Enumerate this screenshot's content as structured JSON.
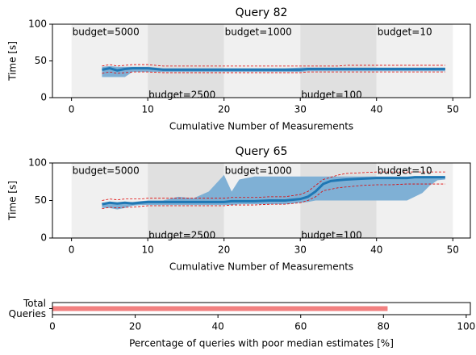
{
  "chart_data": [
    {
      "type": "line",
      "title": "Query 82",
      "xlabel": "Cumulative Number of Measurements",
      "ylabel": "Time [s]",
      "xlim": [
        -2.5,
        52.3
      ],
      "ylim": [
        0,
        100
      ],
      "xticks": [
        0,
        10,
        20,
        30,
        40,
        50
      ],
      "yticks": [
        0,
        50,
        100
      ],
      "regions": [
        {
          "label": "budget=5000",
          "start": 0,
          "end": 10,
          "color": "#f0f0f0"
        },
        {
          "label": "budget=2500",
          "start": 10,
          "end": 20,
          "color": "#e0e0e0"
        },
        {
          "label": "budget=1000",
          "start": 20,
          "end": 30,
          "color": "#f0f0f0"
        },
        {
          "label": "budget=100",
          "start": 30,
          "end": 40,
          "color": "#e0e0e0"
        },
        {
          "label": "budget=10",
          "start": 40,
          "end": 50,
          "color": "#f0f0f0"
        }
      ],
      "x": [
        4,
        5,
        6,
        7,
        8,
        9,
        10,
        12,
        14,
        16,
        18,
        20,
        21,
        22,
        24,
        26,
        28,
        30,
        31,
        32,
        33,
        34,
        35,
        36,
        38,
        40,
        42,
        44,
        45,
        46,
        47,
        48,
        49
      ],
      "line": {
        "color": "#1f77b4",
        "values": [
          38,
          40,
          37,
          39,
          40,
          40,
          40,
          38,
          38,
          38,
          38,
          38,
          38,
          38,
          38,
          38,
          38,
          38,
          39,
          39,
          39,
          39,
          39,
          39,
          39,
          39,
          39,
          39,
          39,
          39,
          39,
          39,
          39
        ]
      },
      "band": {
        "color": "#7fb0d5",
        "lower": [
          28,
          28,
          28,
          28,
          35,
          35,
          35,
          35,
          35,
          35,
          35,
          35,
          35,
          35,
          35,
          35,
          35,
          35,
          36,
          36,
          36,
          36,
          36,
          36,
          36,
          36,
          36,
          36,
          36,
          36,
          36,
          36,
          36
        ],
        "upper": [
          42,
          43,
          42,
          42,
          42,
          42,
          42,
          40,
          40,
          40,
          40,
          40,
          40,
          40,
          40,
          40,
          40,
          41,
          41,
          41,
          41,
          41,
          41,
          41,
          41,
          41,
          41,
          41,
          41,
          41,
          41,
          41,
          41
        ]
      },
      "interval": {
        "color": "#e00000",
        "lower": [
          33,
          35,
          33,
          34,
          35,
          35,
          35,
          34,
          34,
          34,
          34,
          34,
          34,
          34,
          34,
          34,
          34,
          34,
          35,
          35,
          35,
          35,
          35,
          35,
          35,
          35,
          35,
          35,
          35,
          35,
          35,
          35,
          35
        ],
        "upper": [
          43,
          45,
          43,
          44,
          45,
          45,
          45,
          43,
          43,
          43,
          43,
          43,
          43,
          43,
          43,
          43,
          43,
          43,
          43,
          43,
          43,
          43,
          43,
          44,
          44,
          44,
          44,
          44,
          44,
          44,
          44,
          44,
          44
        ]
      }
    },
    {
      "type": "line",
      "title": "Query 65",
      "xlabel": "Cumulative Number of Measurements",
      "ylabel": "Time [s]",
      "xlim": [
        -2.5,
        52.3
      ],
      "ylim": [
        0,
        100
      ],
      "xticks": [
        0,
        10,
        20,
        30,
        40,
        50
      ],
      "yticks": [
        0,
        50,
        100
      ],
      "regions": [
        {
          "label": "budget=5000",
          "start": 0,
          "end": 10,
          "color": "#f0f0f0"
        },
        {
          "label": "budget=2500",
          "start": 10,
          "end": 20,
          "color": "#e0e0e0"
        },
        {
          "label": "budget=1000",
          "start": 20,
          "end": 30,
          "color": "#f0f0f0"
        },
        {
          "label": "budget=100",
          "start": 30,
          "end": 40,
          "color": "#e0e0e0"
        },
        {
          "label": "budget=10",
          "start": 40,
          "end": 50,
          "color": "#f0f0f0"
        }
      ],
      "x": [
        4,
        5,
        6,
        7,
        8,
        9,
        10,
        12,
        14,
        16,
        18,
        20,
        21,
        22,
        24,
        26,
        28,
        30,
        31,
        32,
        33,
        34,
        35,
        36,
        38,
        40,
        42,
        44,
        45,
        46,
        47,
        48,
        49
      ],
      "line": {
        "color": "#1f77b4",
        "values": [
          45,
          47,
          46,
          47,
          46,
          47,
          48,
          48,
          48,
          48,
          48,
          48,
          49,
          49,
          49,
          50,
          50,
          52,
          55,
          62,
          72,
          76,
          77,
          78,
          79,
          80,
          80,
          80,
          81,
          81,
          81,
          81,
          81
        ]
      },
      "band": {
        "color": "#7fb0d5",
        "lower": [
          40,
          40,
          38,
          40,
          43,
          44,
          44,
          44,
          44,
          44,
          44,
          44,
          44,
          45,
          45,
          45,
          45,
          47,
          48,
          50,
          50,
          50,
          50,
          50,
          50,
          50,
          50,
          50,
          55,
          60,
          70,
          77,
          78
        ],
        "upper": [
          47,
          48,
          47,
          48,
          48,
          49,
          50,
          50,
          55,
          53,
          62,
          84,
          62,
          78,
          82,
          82,
          82,
          82,
          82,
          82,
          82,
          82,
          82,
          82,
          82,
          82,
          82,
          82,
          82,
          82,
          82,
          82,
          82
        ]
      },
      "interval": {
        "color": "#e00000",
        "lower": [
          39,
          41,
          40,
          41,
          41,
          42,
          43,
          43,
          43,
          43,
          43,
          43,
          44,
          44,
          44,
          45,
          45,
          47,
          50,
          55,
          63,
          65,
          67,
          68,
          70,
          71,
          71,
          72,
          72,
          72,
          72,
          72,
          72
        ],
        "upper": [
          50,
          52,
          51,
          52,
          52,
          52,
          53,
          53,
          53,
          53,
          53,
          53,
          54,
          54,
          54,
          55,
          55,
          58,
          62,
          70,
          78,
          81,
          84,
          86,
          87,
          88,
          88,
          88,
          88,
          88,
          88,
          88,
          88
        ]
      }
    },
    {
      "type": "bar",
      "orientation": "horizontal",
      "xlabel": "Percentage of queries with poor median estimates [%]",
      "categories": [
        "Total Queries"
      ],
      "values": [
        81
      ],
      "color": "#f28080",
      "xlim": [
        0,
        101
      ],
      "xticks": [
        0,
        20,
        40,
        60,
        80,
        100
      ]
    }
  ]
}
